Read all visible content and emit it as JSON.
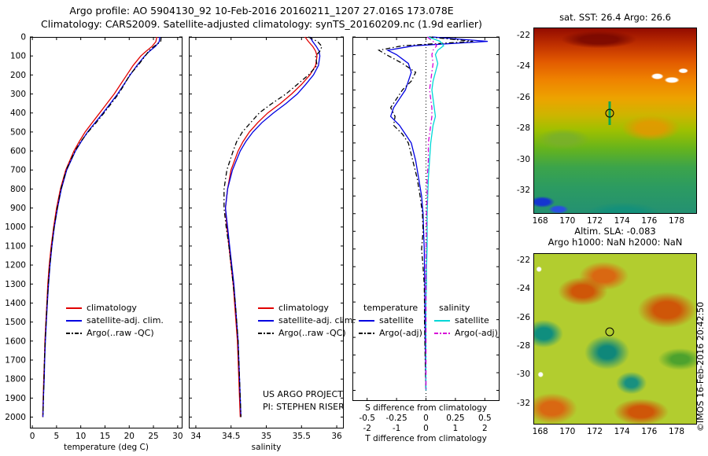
{
  "title": {
    "line1": "Argo profile: AO 5904130_92 10-Feb-2016 20160211_1207 27.016S 173.078E",
    "line2": "Climatology: CARS2009. Satellite-adjusted climatology: synTS_20160209.nc (1.9d earlier)"
  },
  "annotations": {
    "project": "US ARGO PROJECT",
    "pi": "PI: STEPHEN RISER",
    "copyright": "©IMOS 16-Feb-2016 20:42:50"
  },
  "chart_data": [
    {
      "id": "temperature_profile",
      "type": "line",
      "xlabel": "temperature (deg C)",
      "xlim": [
        -0.5,
        31
      ],
      "xticks": [
        0,
        5,
        10,
        15,
        20,
        25,
        30
      ],
      "ylim": [
        0,
        2060
      ],
      "yticks": [
        0,
        100,
        200,
        300,
        400,
        500,
        600,
        700,
        800,
        900,
        1000,
        1100,
        1200,
        1300,
        1400,
        1500,
        1600,
        1700,
        1800,
        1900,
        2000
      ],
      "show_ylabels": true,
      "depths": [
        0,
        25,
        50,
        75,
        100,
        150,
        200,
        250,
        300,
        350,
        400,
        450,
        500,
        550,
        600,
        700,
        800,
        900,
        1000,
        1100,
        1200,
        1300,
        1400,
        1500,
        1600,
        1700,
        1800,
        1900,
        2000
      ],
      "series": [
        {
          "name": "climatology",
          "color": "#e10000",
          "dash": "solid",
          "values": [
            25.7,
            25.5,
            24.7,
            23.5,
            22.4,
            20.8,
            19.5,
            18.2,
            16.9,
            15.4,
            13.9,
            12.4,
            10.9,
            9.7,
            8.6,
            6.9,
            5.8,
            5.0,
            4.4,
            3.9,
            3.5,
            3.2,
            3.0,
            2.8,
            2.6,
            2.5,
            2.35,
            2.25,
            2.15
          ]
        },
        {
          "name": "satellite-adj. clim.",
          "color": "#0000e1",
          "dash": "solid",
          "values": [
            26.3,
            26.2,
            25.4,
            24.2,
            23.2,
            21.6,
            20.2,
            18.9,
            17.6,
            16.1,
            14.6,
            13.0,
            11.4,
            10.1,
            8.9,
            7.1,
            6.0,
            5.2,
            4.55,
            4.05,
            3.65,
            3.35,
            3.1,
            2.9,
            2.7,
            2.55,
            2.45,
            2.3,
            2.2
          ]
        },
        {
          "name": "Argo(..raw -QC)",
          "color": "#000000",
          "dash": "dashdot",
          "values": [
            26.6,
            26.5,
            25.1,
            24.0,
            23.3,
            21.8,
            20.1,
            19.0,
            17.8,
            16.3,
            14.8,
            13.2,
            11.5,
            10.0,
            8.8,
            7.0,
            5.9,
            5.15,
            4.5,
            4.0,
            3.6,
            3.3,
            3.05,
            2.85,
            2.65,
            2.5,
            2.4,
            2.3,
            2.2
          ]
        }
      ]
    },
    {
      "id": "salinity_profile",
      "type": "line",
      "xlabel": "salinity",
      "xlim": [
        33.9,
        36.1
      ],
      "xticks": [
        34,
        34.5,
        35,
        35.5,
        36
      ],
      "ylim": [
        0,
        2060
      ],
      "yticks": [
        0,
        100,
        200,
        300,
        400,
        500,
        600,
        700,
        800,
        900,
        1000,
        1100,
        1200,
        1300,
        1400,
        1500,
        1600,
        1700,
        1800,
        1900,
        2000
      ],
      "show_ylabels": false,
      "depths": [
        0,
        25,
        50,
        75,
        100,
        150,
        200,
        250,
        300,
        350,
        400,
        450,
        500,
        550,
        600,
        700,
        800,
        900,
        1000,
        1100,
        1200,
        1300,
        1400,
        1500,
        1600,
        1700,
        1800,
        1900,
        2000
      ],
      "series": [
        {
          "name": "climatology",
          "color": "#e10000",
          "dash": "solid",
          "values": [
            35.55,
            35.6,
            35.66,
            35.7,
            35.72,
            35.7,
            35.62,
            35.5,
            35.36,
            35.2,
            35.02,
            34.88,
            34.76,
            34.67,
            34.6,
            34.5,
            34.45,
            34.42,
            34.44,
            34.47,
            34.5,
            34.53,
            34.55,
            34.57,
            34.59,
            34.6,
            34.61,
            34.62,
            34.63
          ]
        },
        {
          "name": "satellite-adj. clim.",
          "color": "#0000e1",
          "dash": "solid",
          "values": [
            35.62,
            35.66,
            35.71,
            35.75,
            35.76,
            35.74,
            35.67,
            35.56,
            35.44,
            35.28,
            35.1,
            34.94,
            34.81,
            34.71,
            34.63,
            34.52,
            34.45,
            34.42,
            34.45,
            34.48,
            34.51,
            34.54,
            34.56,
            34.58,
            34.6,
            34.61,
            34.62,
            34.63,
            34.64
          ]
        },
        {
          "name": "Argo(..raw -QC)",
          "color": "#000000",
          "dash": "dashdot",
          "values": [
            35.6,
            35.73,
            35.79,
            35.76,
            35.7,
            35.72,
            35.6,
            35.44,
            35.28,
            35.08,
            34.9,
            34.78,
            34.66,
            34.58,
            34.53,
            34.44,
            34.4,
            34.4,
            34.43,
            34.47,
            34.5,
            34.53,
            34.56,
            34.58,
            34.6,
            34.61,
            34.62,
            34.63,
            34.64
          ]
        }
      ]
    },
    {
      "id": "ts_difference_profile",
      "type": "line",
      "dual_axes": true,
      "t_axis": {
        "label": "T difference from climatology",
        "xlim": [
          -2.5,
          2.5
        ],
        "xticks": [
          -2,
          -1,
          0,
          1,
          2
        ]
      },
      "s_axis": {
        "label": "S difference from climatology",
        "xlim": [
          -0.625,
          0.625
        ],
        "xticks": [
          -0.5,
          -0.25,
          0,
          0.25,
          0.5
        ]
      },
      "ylim": [
        0,
        2060
      ],
      "yticks": [
        0,
        100,
        200,
        300,
        400,
        500,
        600,
        700,
        800,
        900,
        1000,
        1100,
        1200,
        1300,
        1400,
        1500,
        1600,
        1700,
        1800,
        1900,
        2000
      ],
      "show_ylabels": false,
      "legend": {
        "temperature_header": "temperature",
        "salinity_header": "salinity"
      },
      "depths": [
        0,
        25,
        50,
        75,
        100,
        150,
        200,
        250,
        300,
        350,
        400,
        450,
        500,
        550,
        600,
        700,
        800,
        900,
        1000,
        1100,
        1200,
        1300,
        1400,
        1500,
        1600,
        1700,
        1800,
        1900,
        2000
      ],
      "series": [
        {
          "name": "satellite",
          "group": "temperature",
          "axis": "t",
          "color": "#0000e1",
          "dash": "solid",
          "values": [
            0.2,
            2.1,
            -0.4,
            -1.3,
            -1.0,
            -0.6,
            -0.5,
            -0.6,
            -0.7,
            -0.9,
            -1.1,
            -1.2,
            -0.9,
            -0.7,
            -0.5,
            -0.35,
            -0.25,
            -0.15,
            -0.1,
            -0.08,
            -0.06,
            -0.05,
            -0.04,
            -0.04,
            -0.03,
            -0.03,
            -0.02,
            -0.01,
            0.0
          ]
        },
        {
          "name": "Argo(-adj)",
          "group": "temperature",
          "axis": "t",
          "color": "#000000",
          "dash": "dashdot",
          "values": [
            0.1,
            1.6,
            -0.8,
            -1.6,
            -1.35,
            -0.8,
            -0.35,
            -0.5,
            -0.8,
            -1.0,
            -1.2,
            -1.05,
            -1.1,
            -0.8,
            -0.6,
            -0.45,
            -0.3,
            -0.2,
            -0.12,
            -0.1,
            -0.15,
            -0.1,
            -0.06,
            -0.05,
            -0.05,
            -0.04,
            -0.03,
            -0.02,
            0.0
          ]
        },
        {
          "name": "satellite",
          "group": "salinity",
          "axis": "s",
          "color": "#00d7d7",
          "dash": "solid",
          "values": [
            0.02,
            0.12,
            0.15,
            0.1,
            0.08,
            0.1,
            0.08,
            0.06,
            0.05,
            0.06,
            0.07,
            0.08,
            0.06,
            0.05,
            0.04,
            0.03,
            0.02,
            0.015,
            0.01,
            0.01,
            0.01,
            0.005,
            0.005,
            0.0,
            0.0,
            0.0,
            0.0,
            0.0,
            0.0
          ]
        },
        {
          "name": "Argo(-adj)",
          "group": "salinity",
          "axis": "s",
          "color": "#d700d7",
          "dash": "dashdot",
          "values": [
            0.01,
            0.06,
            0.09,
            0.06,
            0.05,
            0.06,
            0.05,
            0.04,
            0.03,
            0.04,
            0.05,
            0.05,
            0.04,
            0.03,
            0.02,
            0.02,
            0.01,
            0.01,
            0.005,
            0.005,
            0.0,
            0.0,
            0.0,
            0.0,
            0.0,
            0.0,
            0.0,
            0.0,
            0.0
          ]
        }
      ]
    }
  ],
  "maps": [
    {
      "id": "sst_map",
      "title": "sat. SST: 26.4 Argo: 26.6",
      "xticks": [
        168,
        170,
        172,
        174,
        176,
        178
      ],
      "yticks": [
        -22,
        -24,
        -26,
        -28,
        -30,
        -32
      ],
      "lon_range": [
        167.5,
        179.5
      ],
      "lat_range": [
        -21.5,
        -33.5
      ],
      "marker": {
        "lon": 173.08,
        "lat": -27.02
      }
    },
    {
      "id": "sla_map",
      "title_lines": [
        "Altim. SLA: -0.083",
        "Argo h1000: NaN h2000: NaN"
      ],
      "xticks": [
        168,
        170,
        172,
        174,
        176,
        178
      ],
      "yticks": [
        -22,
        -24,
        -26,
        -28,
        -30,
        -32
      ],
      "lon_range": [
        167.5,
        179.5
      ],
      "lat_range": [
        -21.5,
        -33.5
      ],
      "marker": {
        "lon": 173.08,
        "lat": -27.02
      }
    }
  ]
}
